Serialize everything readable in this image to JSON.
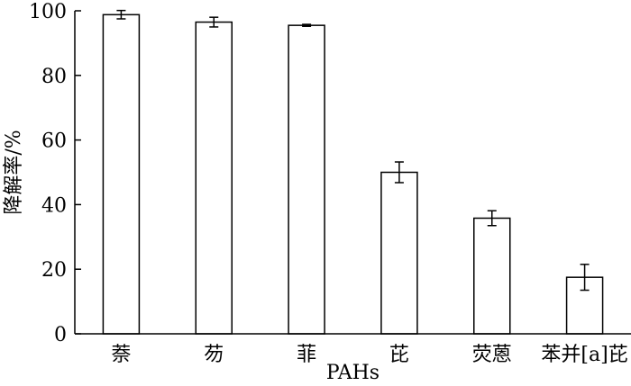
{
  "chart_data": {
    "type": "bar",
    "xlabel": "PAHs",
    "ylabel": "降解率/%",
    "ylim": [
      0,
      100
    ],
    "yticks": [
      0,
      20,
      40,
      60,
      80,
      100
    ],
    "categories": [
      "萘",
      "芴",
      "菲",
      "芘",
      "荧蒽",
      "苯并[a]芘"
    ],
    "values": [
      98.8,
      96.5,
      95.5,
      50.0,
      35.8,
      17.5
    ],
    "errors": [
      1.3,
      1.5,
      0.3,
      3.2,
      2.3,
      4.0
    ],
    "bar_color": "#ffffff",
    "stroke_color": "#000000",
    "grid": false
  }
}
